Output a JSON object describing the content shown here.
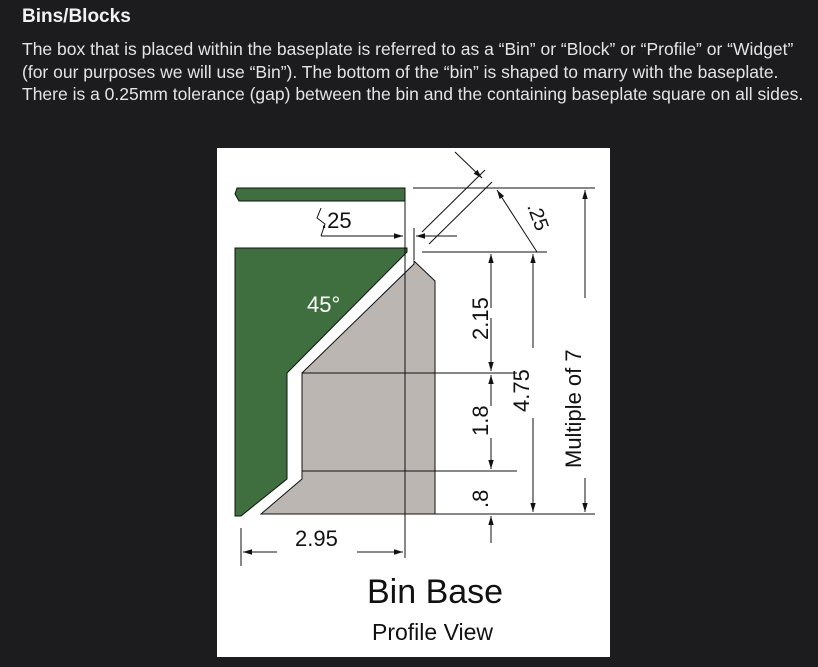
{
  "heading": "Bins/Blocks",
  "paragraph": "The box that is placed within the baseplate is referred to as a “Bin” or “Block” or “Profile” or “Widget” (for our purposes we will use “Bin”). The bottom of the “bin” is shaped to marry with the baseplate. There is a 0.25mm tolerance (gap) between the bin and the containing baseplate square on all sides.",
  "diagram": {
    "title": "Bin Base",
    "subtitle": "Profile View",
    "colors": {
      "baseplate": "#3f6f3f",
      "bin": "#bbb6b1",
      "line": "#111111"
    },
    "labels": {
      "gap_top": ".25",
      "gap_diag": ".25",
      "angle": "45°",
      "height_upper": "2.15",
      "height_mid": "1.8",
      "height_lower": ".8",
      "height_total": "4.75",
      "height_multiple": "Multiple of 7",
      "width_bottom": "2.95"
    }
  }
}
